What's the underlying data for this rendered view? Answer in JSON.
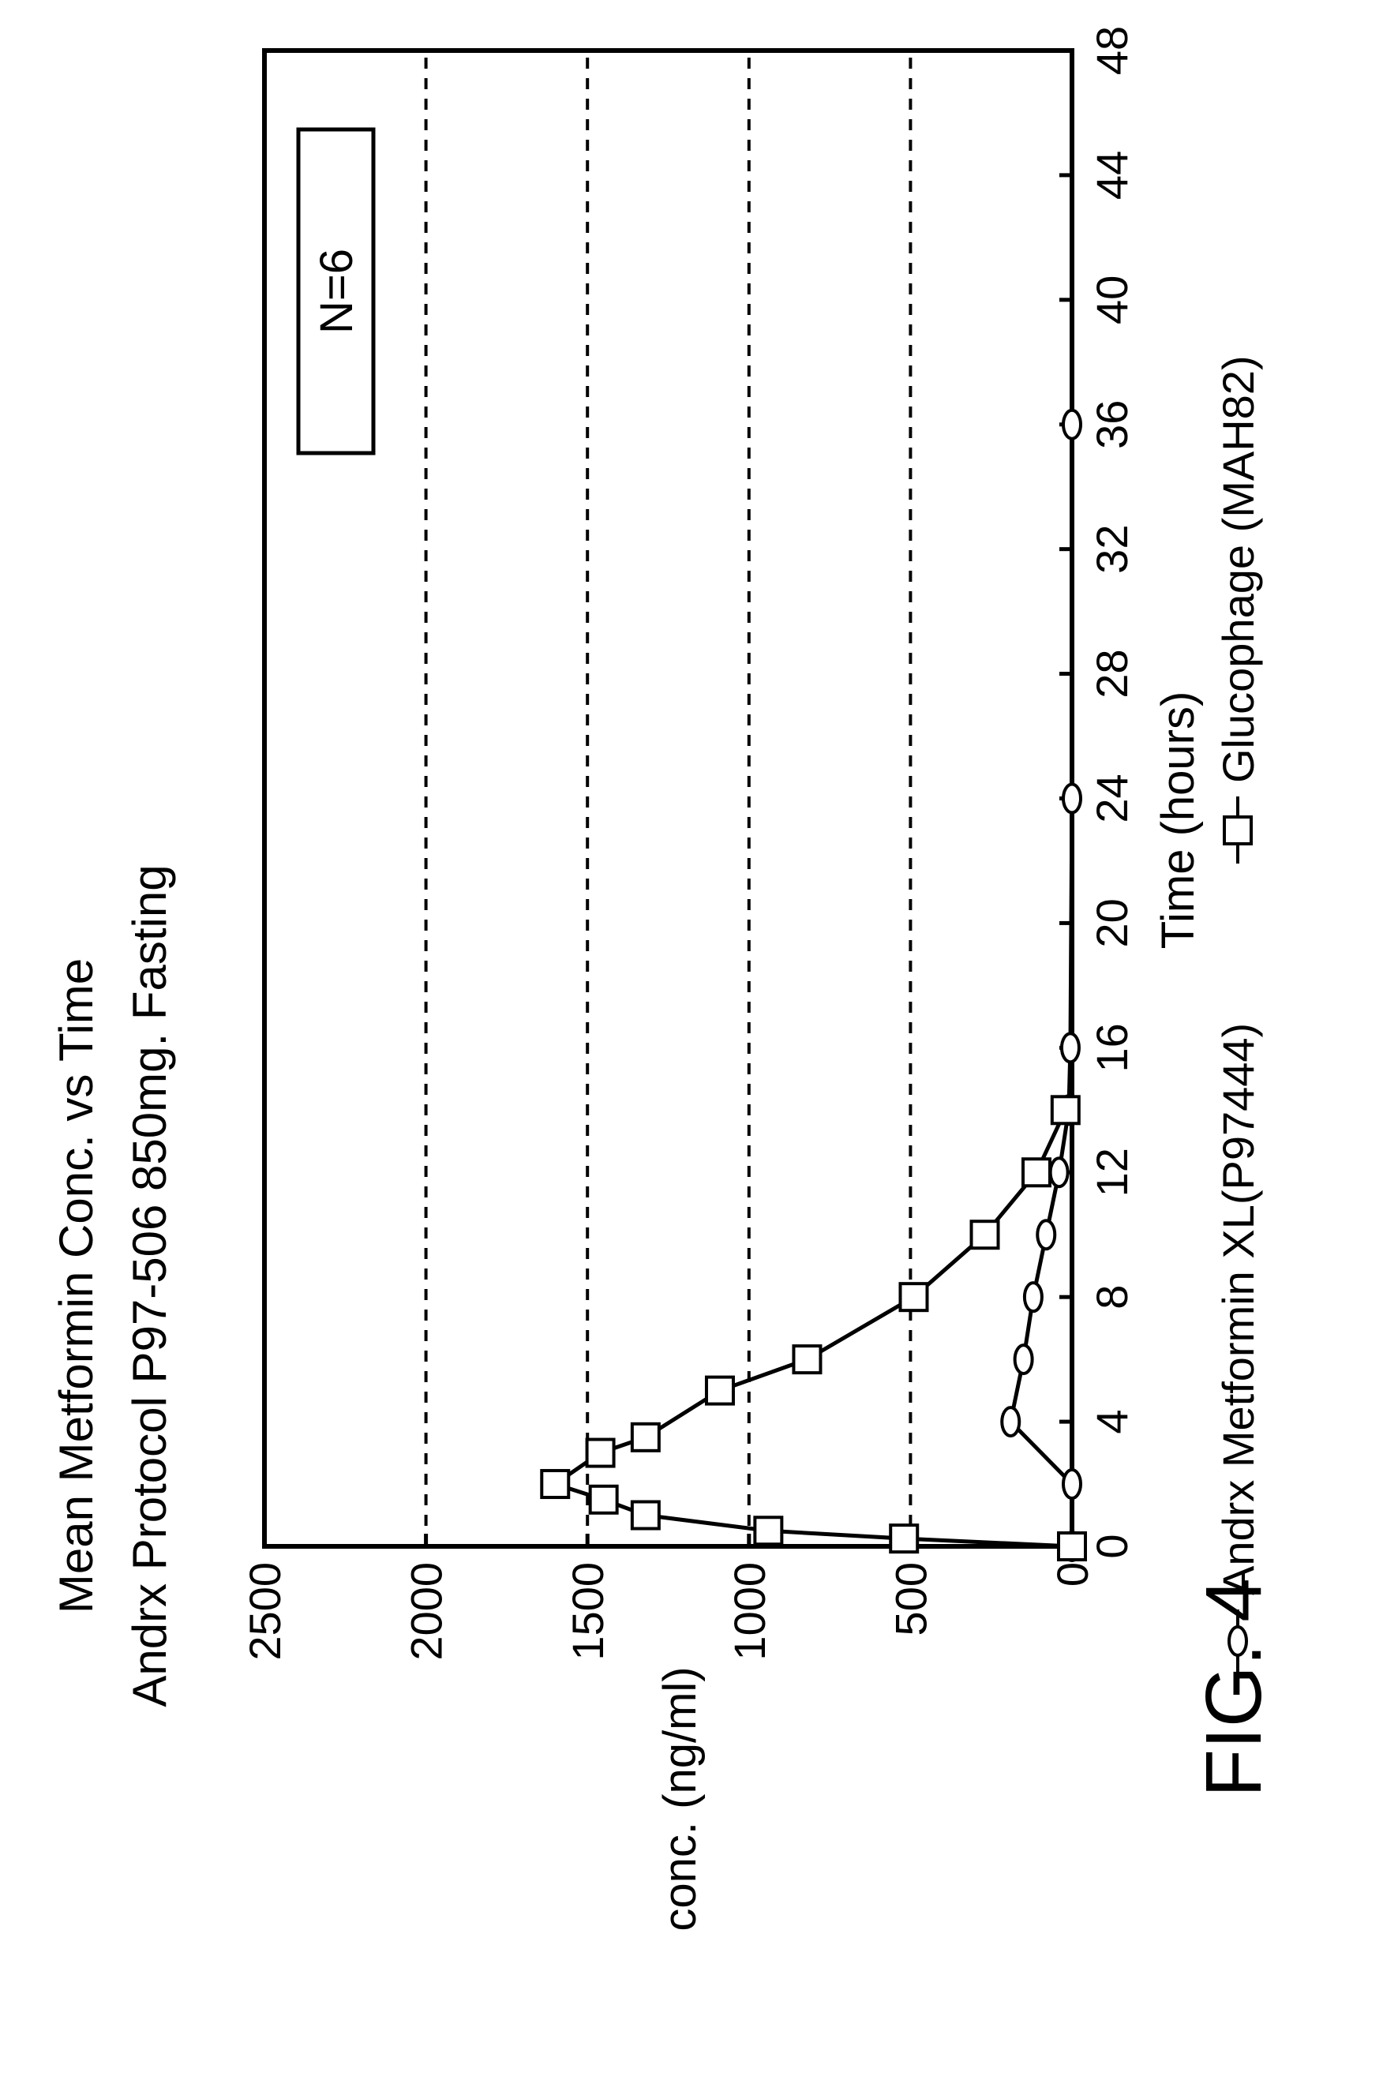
{
  "chart_data": {
    "type": "line",
    "title": "Mean Metformin Conc. vs Time",
    "subtitle": "Andrx Protocol P97-506 850mg.  Fasting",
    "xlabel": "Time (hours)",
    "ylabel": "conc. (ng/ml)",
    "xlim": [
      0,
      48
    ],
    "ylim": [
      0,
      2500
    ],
    "xticks": [
      0,
      4,
      8,
      12,
      16,
      20,
      24,
      28,
      32,
      36,
      40,
      44,
      48
    ],
    "yticks": [
      0,
      500,
      1000,
      1500,
      2000,
      2500
    ],
    "grid": "horizontal dashed at 500, 1000, 1500, 2000",
    "annotation": "N=6",
    "legend_position": "bottom",
    "series": [
      {
        "name": "Andrx Metformin XL(P97444)",
        "marker": "ellipse",
        "x": [
          0,
          2,
          4,
          6,
          8,
          10,
          12,
          14,
          16,
          24,
          36
        ],
        "y": [
          0,
          0,
          190,
          150,
          120,
          80,
          40,
          10,
          5,
          0,
          0
        ]
      },
      {
        "name": "Glucophage (MAH82)",
        "marker": "square",
        "x": [
          0,
          0.25,
          0.5,
          1,
          1.5,
          2,
          3,
          3.5,
          5,
          6,
          8,
          10,
          12,
          14
        ],
        "y": [
          0,
          520,
          940,
          1320,
          1450,
          1600,
          1460,
          1320,
          1090,
          820,
          490,
          270,
          110,
          20
        ]
      }
    ]
  },
  "figure_label": "FIG. 4"
}
